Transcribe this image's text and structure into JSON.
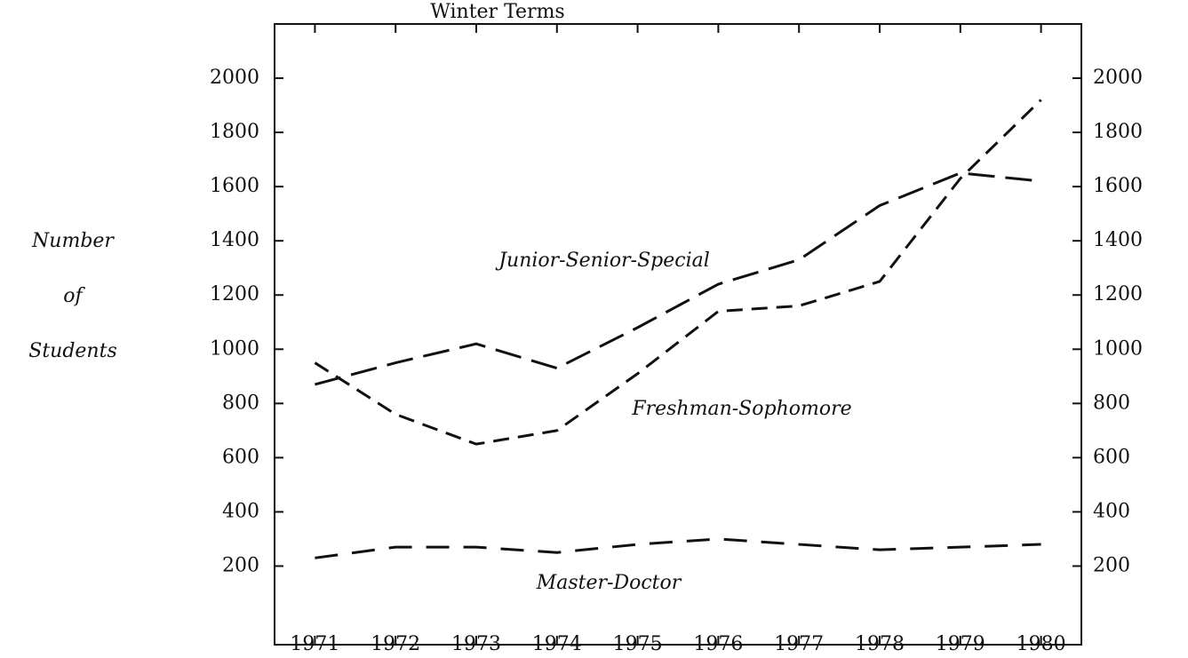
{
  "chart_data": {
    "type": "line",
    "title": "Winter Terms",
    "ylabel": [
      "Number",
      "of",
      "Students"
    ],
    "x": [
      1971,
      1972,
      1973,
      1974,
      1975,
      1976,
      1977,
      1978,
      1979,
      1980
    ],
    "xlim": [
      1970.5,
      1980.5
    ],
    "xticks": [
      1971,
      1972,
      1973,
      1974,
      1975,
      1976,
      1977,
      1978,
      1979,
      1980
    ],
    "ylim": [
      -90,
      2200
    ],
    "yticks": [
      200,
      400,
      600,
      800,
      1000,
      1200,
      1400,
      1600,
      1800,
      2000
    ],
    "y2lim": [
      -90,
      2200
    ],
    "y2ticks": [
      200,
      400,
      600,
      800,
      1000,
      1200,
      1400,
      1600,
      1800,
      2000
    ],
    "grid": false,
    "series": [
      {
        "name": "Junior-Senior-Special",
        "color": "#111111",
        "values": [
          870,
          950,
          1020,
          930,
          1080,
          1240,
          1330,
          1530,
          1650,
          1620
        ]
      },
      {
        "name": "Freshman-Sophomore",
        "color": "#111111",
        "values": [
          950,
          760,
          650,
          700,
          910,
          1140,
          1160,
          1250,
          1630,
          1920
        ]
      },
      {
        "name": "Master-Doctor",
        "color": "#111111",
        "values": [
          230,
          270,
          270,
          250,
          280,
          300,
          280,
          260,
          270,
          280
        ]
      }
    ]
  }
}
